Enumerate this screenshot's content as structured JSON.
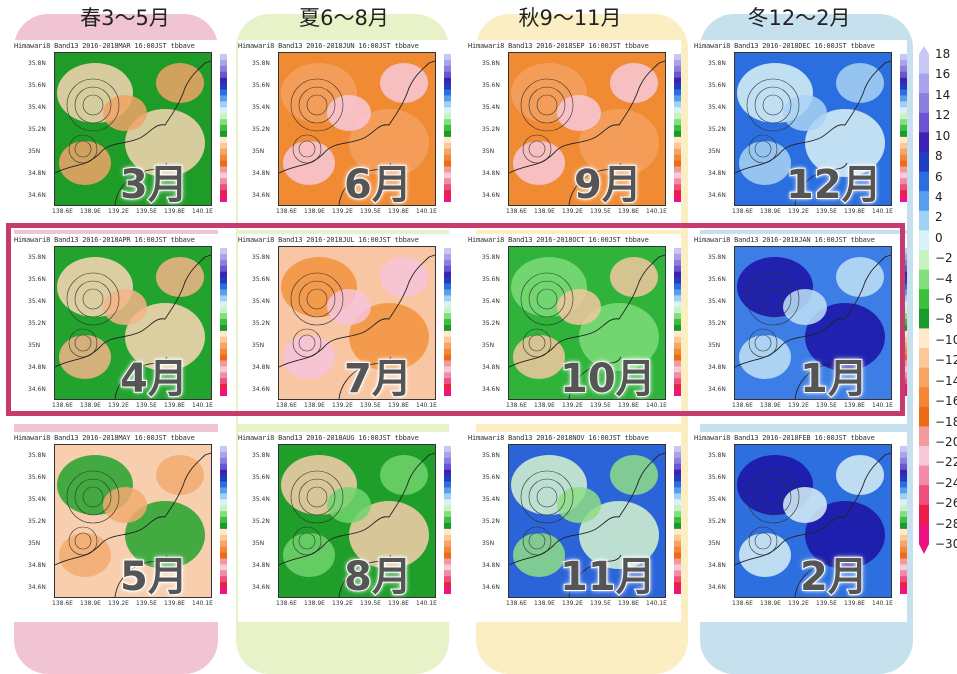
{
  "seasons": [
    {
      "label": "春3～5月",
      "color": "#f1c4d3"
    },
    {
      "label": "夏6～8月",
      "color": "#e8f2c8"
    },
    {
      "label": "秋9～11月",
      "color": "#fbeec2"
    },
    {
      "label": "冬12～2月",
      "color": "#c6e0ee"
    }
  ],
  "panels": [
    {
      "title": "Himawari8 Band13   2016-2018MAR 16:00JST tbbave",
      "month": "3月",
      "theme": "warm-mixed"
    },
    {
      "title": "Himawari8 Band13   2016-2018JUN 16:00JST tbbave",
      "month": "6月",
      "theme": "orange"
    },
    {
      "title": "Himawari8 Band13   2016-2018SEP 16:00JST tbbave",
      "month": "9月",
      "theme": "orange"
    },
    {
      "title": "Himawari8 Band13   2016-2018DEC 16:00JST tbbave",
      "month": "12月",
      "theme": "blue-light"
    },
    {
      "title": "Himawari8 Band13   2016-2018APR 16:00JST tbbave",
      "month": "4月",
      "theme": "green-peach"
    },
    {
      "title": "Himawari8 Band13   2016-2018JUL 16:00JST tbbave",
      "month": "7月",
      "theme": "peach-orange"
    },
    {
      "title": "Himawari8 Band13   2016-2018OCT 16:00JST tbbave",
      "month": "10月",
      "theme": "green"
    },
    {
      "title": "Himawari8 Band13   2016-2018JAN 16:00JST tbbave",
      "month": "1月",
      "theme": "blue-dark"
    },
    {
      "title": "Himawari8 Band13   2016-2018MAY 16:00JST tbbave",
      "month": "5月",
      "theme": "peach-green"
    },
    {
      "title": "Himawari8 Band13   2016-2018AUG 16:00JST tbbave",
      "month": "8月",
      "theme": "green-peach2"
    },
    {
      "title": "Himawari8 Band13   2016-2018NOV 16:00JST tbbave",
      "month": "11月",
      "theme": "blue-green"
    },
    {
      "title": "Himawari8 Band13   2016-2018FEB 16:00JST tbbave",
      "month": "2月",
      "theme": "blue-mid"
    }
  ],
  "axes": {
    "y_ticks": [
      "35.8N",
      "35.6N",
      "35.4N",
      "35.2N",
      "35N",
      "34.8N",
      "34.6N"
    ],
    "x_ticks": [
      "138.6E",
      "138.9E",
      "139.2E",
      "139.5E",
      "139.8E",
      "140.1E"
    ]
  },
  "mini_legend_ticks": [
    "18",
    "16",
    "14",
    "12",
    "10",
    "8",
    "6",
    "4",
    "2",
    "0",
    "-2",
    "-4",
    "-6",
    "-8",
    "-10",
    "-12",
    "-14",
    "-16",
    "-18",
    "-20",
    "-22",
    "-24",
    "-26",
    "-28",
    "-30"
  ],
  "legend": {
    "ticks": [
      "18",
      "16",
      "14",
      "12",
      "10",
      "8",
      "6",
      "4",
      "2",
      "0",
      "−2",
      "−4",
      "−6",
      "−8",
      "−10",
      "−12",
      "−14",
      "−16",
      "−18",
      "−20",
      "−22",
      "−24",
      "−26",
      "−28",
      "−30"
    ],
    "colors": [
      "#c8c8f5",
      "#a7a3ec",
      "#8b7fe0",
      "#6a55d2",
      "#3b22b4",
      "#1f3fbf",
      "#2c6ee0",
      "#58a0ee",
      "#a0d2f5",
      "#d8f2f7",
      "#c6f3c0",
      "#82df7f",
      "#3cbf3c",
      "#1a9a2a",
      "#ffe9c9",
      "#fcc89a",
      "#f8a563",
      "#f48735",
      "#ee6a14",
      "#f29a9a",
      "#f7c8d8",
      "#f28aa8",
      "#ef5079",
      "#ea1e48",
      "#ee1282"
    ]
  },
  "chart_data": {
    "type": "heatmap",
    "title": "Himawari8 Band13 2016-2018 16:00JST tbbave",
    "xlabel": "",
    "ylabel": "",
    "x_ticks": [
      "138.6E",
      "138.9E",
      "139.2E",
      "139.5E",
      "139.8E",
      "140.1E"
    ],
    "y_ticks": [
      "35.8N",
      "35.6N",
      "35.4N",
      "35.2N",
      "35N",
      "34.8N",
      "34.6N"
    ],
    "color_scale": [
      18,
      16,
      14,
      12,
      10,
      8,
      6,
      4,
      2,
      0,
      -2,
      -4,
      -6,
      -8,
      -10,
      -12,
      -14,
      -16,
      -18,
      -20,
      -22,
      -24,
      -26,
      -28,
      -30
    ],
    "panels": [
      "MAR",
      "JUN",
      "SEP",
      "DEC",
      "APR",
      "JUL",
      "OCT",
      "JAN",
      "MAY",
      "AUG",
      "NOV",
      "FEB"
    ]
  }
}
